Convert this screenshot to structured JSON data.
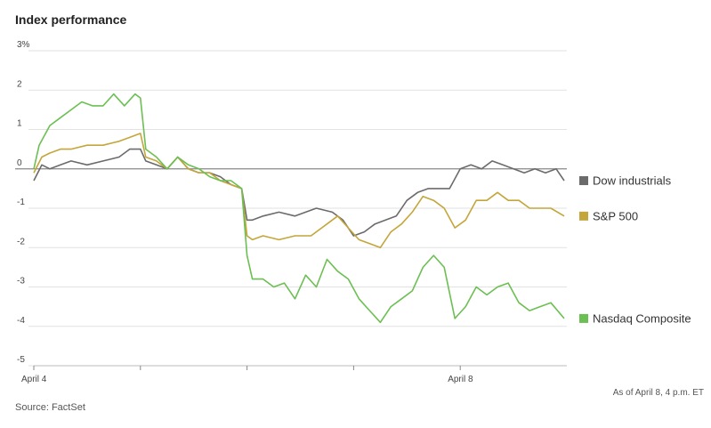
{
  "chart_data": {
    "type": "line",
    "title": "Index performance",
    "ylim": [
      -5,
      3
    ],
    "yticks": [
      {
        "value": 3,
        "label": "3%"
      },
      {
        "value": 2,
        "label": "2"
      },
      {
        "value": 1,
        "label": "1"
      },
      {
        "value": 0,
        "label": "0"
      },
      {
        "value": -1,
        "label": "-1"
      },
      {
        "value": -2,
        "label": "-2"
      },
      {
        "value": -3,
        "label": "-3"
      },
      {
        "value": -4,
        "label": "-4"
      },
      {
        "value": -5,
        "label": "-5"
      }
    ],
    "xlim": [
      0,
      10
    ],
    "xticks": [
      0,
      2,
      4,
      6,
      8
    ],
    "xtick_labels": [
      {
        "x": 0,
        "label": "April 4"
      },
      {
        "x": 8,
        "label": "April 8"
      }
    ],
    "grid": true,
    "legend": "right",
    "series": [
      {
        "name": "Dow industrials",
        "color": "#6b6b6b",
        "x": [
          0,
          0.15,
          0.3,
          0.5,
          0.7,
          1.0,
          1.3,
          1.6,
          1.8,
          2.0,
          2.1,
          2.3,
          2.5,
          2.7,
          2.9,
          3.1,
          3.3,
          3.5,
          3.7,
          3.9,
          4.0,
          4.1,
          4.3,
          4.6,
          4.9,
          5.3,
          5.6,
          5.8,
          6.0,
          6.2,
          6.4,
          6.6,
          6.8,
          7.0,
          7.2,
          7.4,
          7.6,
          7.8,
          8.0,
          8.2,
          8.4,
          8.6,
          8.8,
          9.0,
          9.2,
          9.4,
          9.6,
          9.8,
          9.95
        ],
        "values": [
          -0.3,
          0.1,
          0.0,
          0.1,
          0.2,
          0.1,
          0.2,
          0.3,
          0.5,
          0.5,
          0.2,
          0.1,
          0.0,
          0.3,
          0.0,
          -0.1,
          -0.1,
          -0.2,
          -0.4,
          -0.5,
          -1.3,
          -1.3,
          -1.2,
          -1.1,
          -1.2,
          -1.0,
          -1.1,
          -1.3,
          -1.7,
          -1.6,
          -1.4,
          -1.3,
          -1.2,
          -0.8,
          -0.6,
          -0.5,
          -0.5,
          -0.5,
          0.0,
          0.1,
          0.0,
          0.2,
          0.1,
          0.0,
          -0.1,
          0.0,
          -0.1,
          0.0,
          -0.3
        ]
      },
      {
        "name": "S&P 500",
        "color": "#c4a63a",
        "x": [
          0,
          0.15,
          0.3,
          0.5,
          0.7,
          1.0,
          1.3,
          1.6,
          1.8,
          2.0,
          2.1,
          2.3,
          2.5,
          2.7,
          2.9,
          3.1,
          3.3,
          3.5,
          3.7,
          3.9,
          4.0,
          4.1,
          4.3,
          4.6,
          4.9,
          5.2,
          5.5,
          5.7,
          5.9,
          6.1,
          6.3,
          6.5,
          6.7,
          6.9,
          7.1,
          7.3,
          7.5,
          7.7,
          7.9,
          8.1,
          8.3,
          8.5,
          8.7,
          8.9,
          9.1,
          9.3,
          9.5,
          9.7,
          9.95
        ],
        "values": [
          -0.1,
          0.3,
          0.4,
          0.5,
          0.5,
          0.6,
          0.6,
          0.7,
          0.8,
          0.9,
          0.3,
          0.2,
          0.0,
          0.3,
          0.0,
          -0.1,
          -0.1,
          -0.3,
          -0.4,
          -0.5,
          -1.7,
          -1.8,
          -1.7,
          -1.8,
          -1.7,
          -1.7,
          -1.4,
          -1.2,
          -1.5,
          -1.8,
          -1.9,
          -2.0,
          -1.6,
          -1.4,
          -1.1,
          -0.7,
          -0.8,
          -1.0,
          -1.5,
          -1.3,
          -0.8,
          -0.8,
          -0.6,
          -0.8,
          -0.8,
          -1.0,
          -1.0,
          -1.0,
          -1.2
        ]
      },
      {
        "name": "Nasdaq Composite",
        "color": "#6cbf52",
        "x": [
          0,
          0.1,
          0.3,
          0.5,
          0.7,
          0.9,
          1.1,
          1.3,
          1.5,
          1.7,
          1.9,
          2.0,
          2.1,
          2.3,
          2.5,
          2.7,
          2.9,
          3.1,
          3.3,
          3.5,
          3.7,
          3.9,
          4.0,
          4.1,
          4.3,
          4.5,
          4.7,
          4.9,
          5.1,
          5.3,
          5.5,
          5.7,
          5.9,
          6.1,
          6.3,
          6.5,
          6.7,
          6.9,
          7.1,
          7.3,
          7.5,
          7.7,
          7.9,
          8.1,
          8.3,
          8.5,
          8.7,
          8.9,
          9.1,
          9.3,
          9.5,
          9.7,
          9.95
        ],
        "values": [
          0.0,
          0.6,
          1.1,
          1.3,
          1.5,
          1.7,
          1.6,
          1.6,
          1.9,
          1.6,
          1.9,
          1.8,
          0.5,
          0.3,
          0.0,
          0.3,
          0.1,
          0.0,
          -0.2,
          -0.3,
          -0.3,
          -0.5,
          -2.2,
          -2.8,
          -2.8,
          -3.0,
          -2.9,
          -3.3,
          -2.7,
          -3.0,
          -2.3,
          -2.6,
          -2.8,
          -3.3,
          -3.6,
          -3.9,
          -3.5,
          -3.3,
          -3.1,
          -2.5,
          -2.2,
          -2.5,
          -3.8,
          -3.5,
          -3.0,
          -3.2,
          -3.0,
          -2.9,
          -3.4,
          -3.6,
          -3.5,
          -3.4,
          -3.8
        ]
      }
    ],
    "note": "As of April 8, 4 p.m. ET",
    "source": "Source: FactSet"
  }
}
